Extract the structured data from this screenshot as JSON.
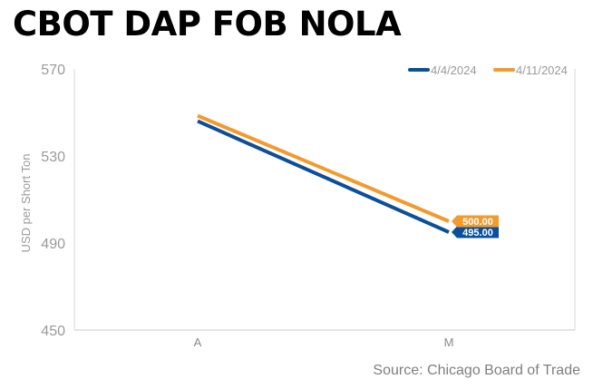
{
  "chart_data": {
    "type": "line",
    "title": "CBOT DAP FOB NOLA",
    "xlabel": "",
    "ylabel": "USD per Short Ton",
    "categories": [
      "A",
      "M"
    ],
    "ylim": [
      450,
      570
    ],
    "yticks": [
      450,
      490,
      530,
      570
    ],
    "grid": false,
    "legend_position": "top-right",
    "series": [
      {
        "name": "4/4/2024",
        "color": "#0b4f9c",
        "values": [
          546,
          495
        ],
        "end_label": "495.00"
      },
      {
        "name": "4/11/2024",
        "color": "#f39a2d",
        "values": [
          548.5,
          500
        ],
        "end_label": "500.00"
      }
    ],
    "source": "Source: Chicago Board of Trade"
  }
}
